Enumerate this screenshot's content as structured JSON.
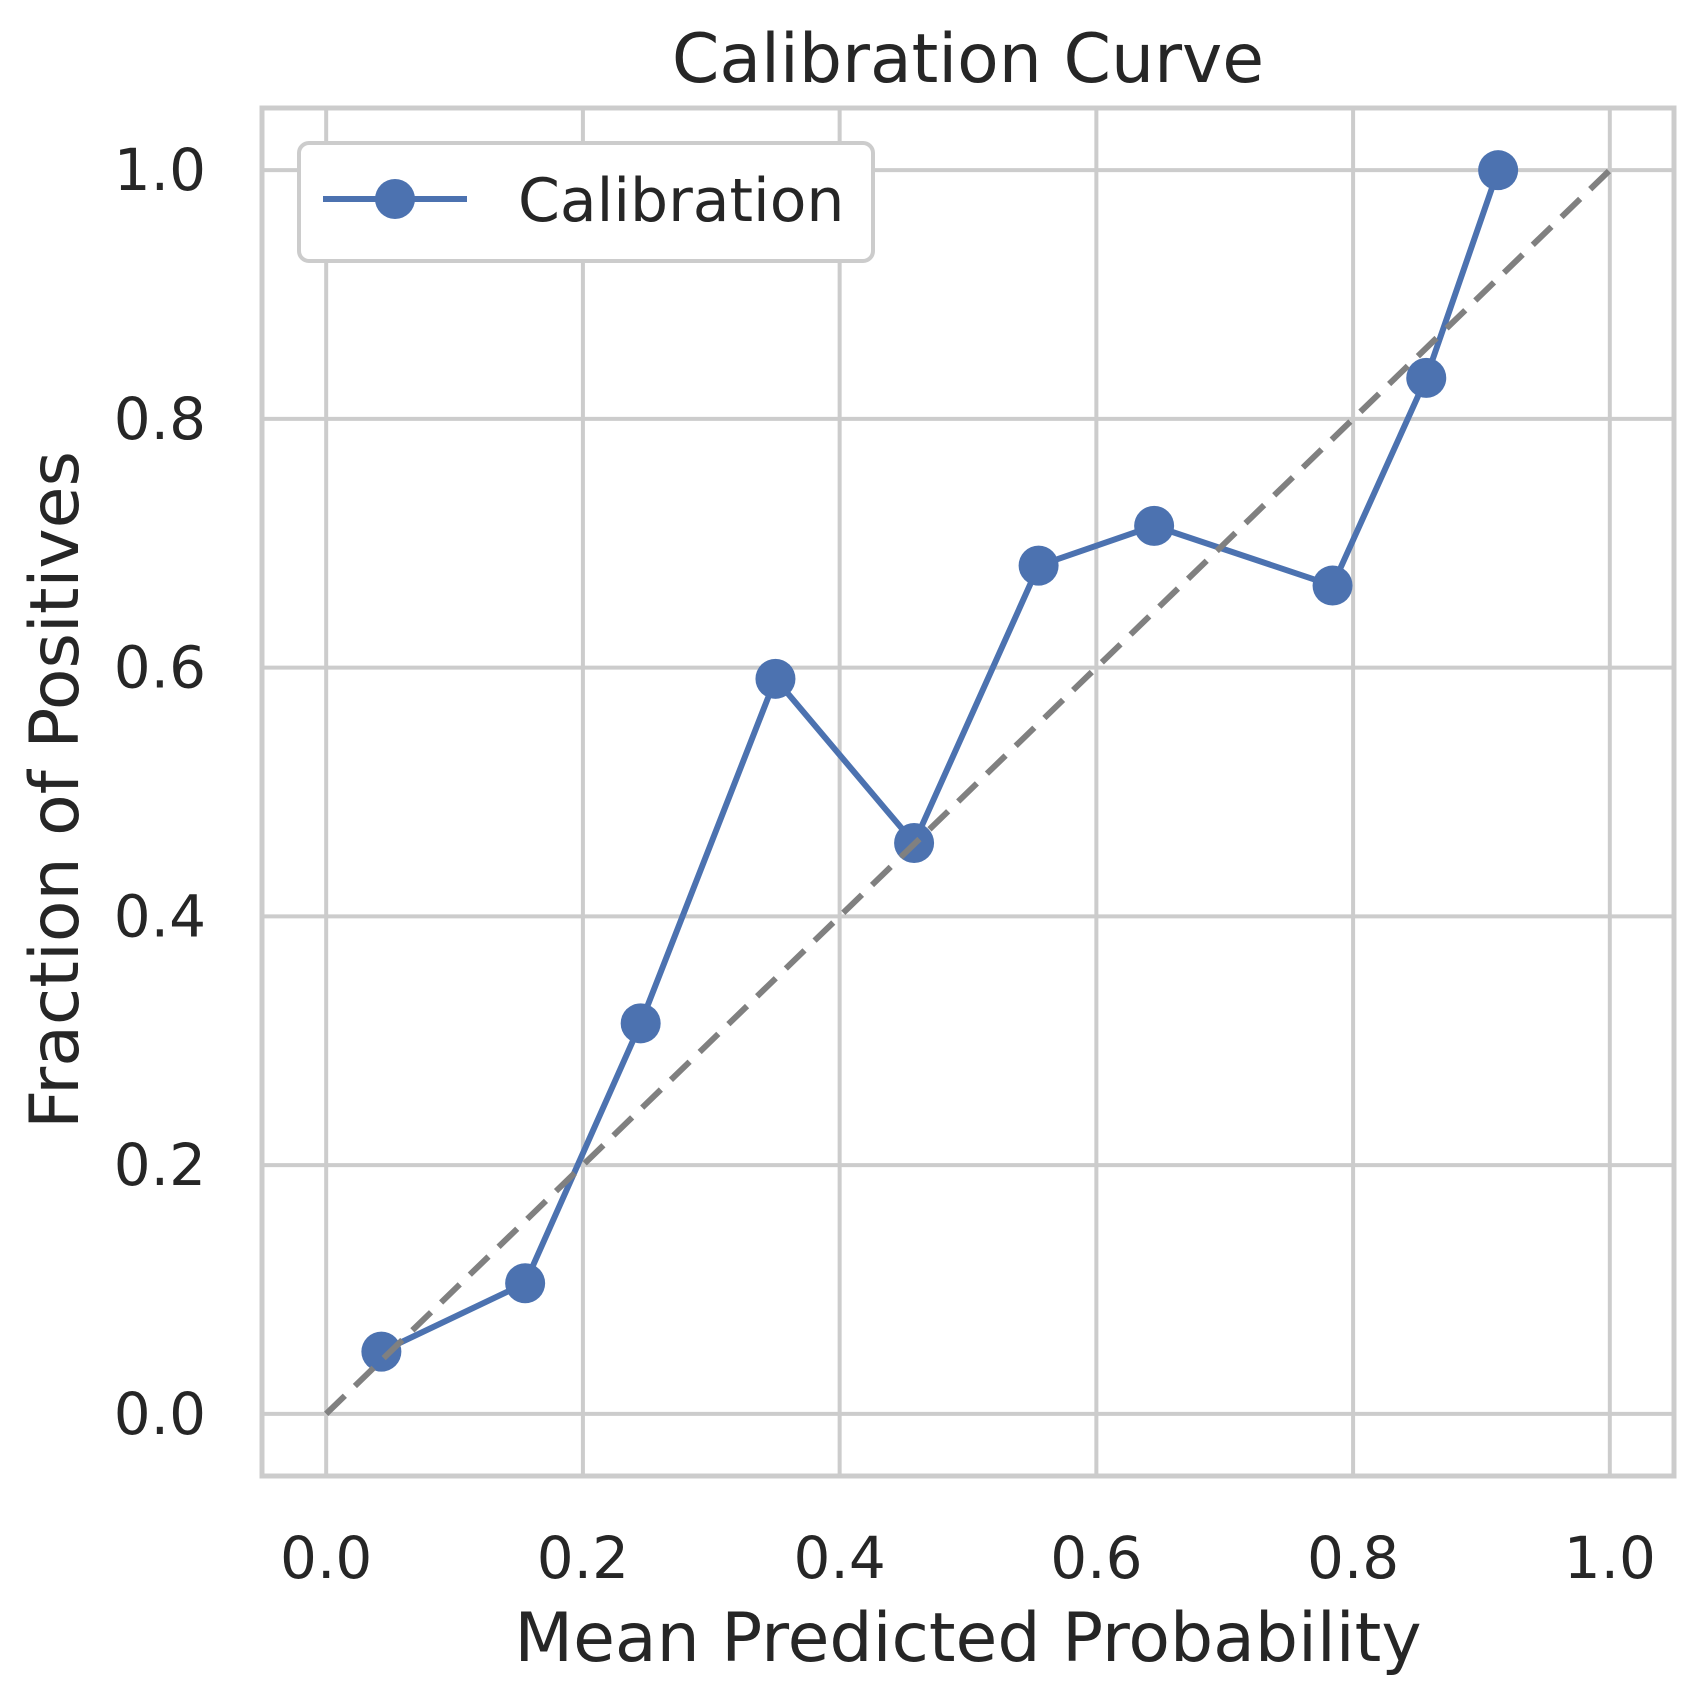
{
  "chart_data": {
    "type": "line",
    "title": "Calibration Curve",
    "xlabel": "Mean Predicted Probability",
    "ylabel": "Fraction of Positives",
    "xlim": [
      -0.05,
      1.05
    ],
    "ylim": [
      -0.05,
      1.05
    ],
    "xticks": [
      "0.0",
      "0.2",
      "0.4",
      "0.6",
      "0.8",
      "1.0"
    ],
    "yticks": [
      "0.0",
      "0.2",
      "0.4",
      "0.6",
      "0.8",
      "1.0"
    ],
    "grid": true,
    "legend_position": "top-left",
    "series": [
      {
        "name": "Calibration",
        "color": "#4c72b0",
        "marker": "circle",
        "x": [
          0.043,
          0.155,
          0.245,
          0.35,
          0.458,
          0.555,
          0.645,
          0.784,
          0.857,
          0.913
        ],
        "y": [
          0.05,
          0.105,
          0.314,
          0.591,
          0.459,
          0.682,
          0.714,
          0.666,
          0.833,
          1.0
        ]
      },
      {
        "name": "",
        "color": "#808080",
        "style": "dashed",
        "x": [
          0.0,
          1.0
        ],
        "y": [
          0.0,
          1.0
        ]
      }
    ]
  }
}
